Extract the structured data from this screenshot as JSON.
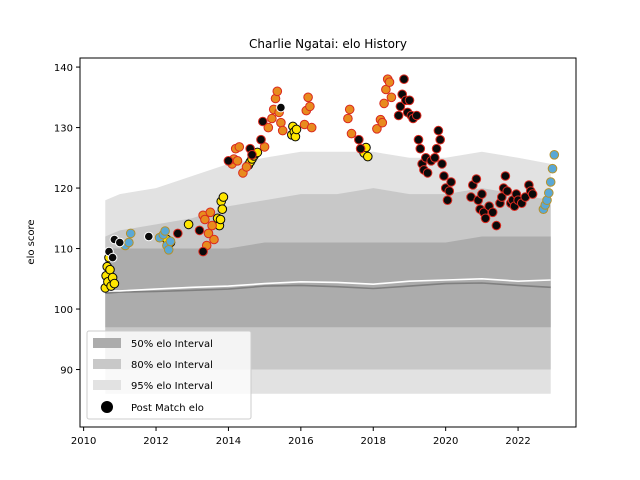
{
  "chart_data": {
    "type": "scatter",
    "title": "Charlie Ngatai: elo History",
    "xlabel": "",
    "ylabel": "elo score",
    "xlim": [
      2009.9,
      2023.6
    ],
    "ylim": [
      80.5,
      141.5
    ],
    "x_ticks": [
      2010,
      2012,
      2014,
      2016,
      2018,
      2020,
      2022
    ],
    "y_ticks": [
      90,
      100,
      110,
      120,
      130,
      140
    ],
    "grid": false,
    "legend_position": "lower-left",
    "legend": [
      {
        "label": "50% elo Interval",
        "kind": "band",
        "color": "#acacac"
      },
      {
        "label": "80% elo Interval",
        "kind": "band",
        "color": "#c8c8c8"
      },
      {
        "label": "95% elo Interval",
        "kind": "band",
        "color": "#e2e2e2"
      },
      {
        "label": "Post Match elo",
        "kind": "marker",
        "color": "#000000"
      }
    ],
    "bands": {
      "x": [
        2010.6,
        2011.0,
        2012.0,
        2013.0,
        2014.0,
        2015.0,
        2016.0,
        2017.0,
        2018.0,
        2019.0,
        2020.0,
        2021.0,
        2022.0,
        2022.9
      ],
      "p95_upper": [
        118,
        119,
        120,
        122,
        124,
        125,
        126,
        126,
        126,
        125,
        125,
        126,
        125,
        124
      ],
      "p95_lower": [
        86,
        86,
        86,
        86,
        86,
        86,
        86,
        86,
        86,
        86,
        86,
        86,
        86,
        86
      ],
      "p80_upper": [
        112,
        113,
        114,
        115,
        117,
        118,
        119,
        119,
        120,
        119,
        119,
        120,
        119,
        118
      ],
      "p80_lower": [
        90,
        90,
        90,
        90,
        90,
        90,
        90,
        90,
        90,
        90,
        90,
        90,
        90,
        90
      ],
      "p50_upper": [
        110,
        110,
        110,
        110,
        110,
        111,
        111,
        111,
        111,
        111,
        111,
        112,
        112,
        112
      ],
      "p50_lower": [
        97,
        97,
        97,
        97,
        97,
        97,
        97,
        97,
        97,
        97,
        97,
        97,
        97,
        97
      ]
    },
    "median_line": {
      "x": [
        2010.6,
        2011.0,
        2012.0,
        2013.0,
        2014.0,
        2015.0,
        2016.0,
        2017.0,
        2018.0,
        2019.0,
        2020.0,
        2021.0,
        2022.0,
        2022.9
      ],
      "y": [
        103.0,
        103.0,
        103.3,
        103.6,
        103.8,
        104.2,
        104.5,
        104.4,
        104.1,
        104.6,
        104.8,
        105.0,
        104.6,
        104.8
      ]
    },
    "mean_line": {
      "x": [
        2010.6,
        2011.0,
        2012.0,
        2013.0,
        2014.0,
        2015.0,
        2016.0,
        2017.0,
        2018.0,
        2019.0,
        2020.0,
        2021.0,
        2022.0,
        2022.9
      ],
      "y": [
        102.6,
        102.8,
        102.9,
        103.1,
        103.3,
        103.8,
        103.9,
        103.7,
        103.4,
        103.8,
        104.2,
        104.3,
        103.9,
        103.6
      ]
    },
    "series": [
      {
        "fill": "#ffe600",
        "edge": "#0a0a0a",
        "x": [
          2010.6,
          2010.62,
          2010.65,
          2010.67,
          2010.7,
          2010.73,
          2010.76,
          2010.8,
          2010.85,
          2012.3,
          2012.4,
          2012.9,
          2013.7,
          2013.75,
          2013.78,
          2013.8,
          2013.83,
          2013.86,
          2014.55,
          2014.6,
          2014.65,
          2014.7,
          2014.75,
          2014.8,
          2015.75,
          2015.78,
          2015.82,
          2015.85,
          2015.88,
          2017.7,
          2017.75,
          2017.8,
          2017.85
        ],
        "y": [
          103.5,
          105.5,
          107.0,
          104.5,
          108.5,
          106.5,
          103.8,
          105.2,
          104.2,
          111.5,
          111.0,
          114.0,
          115.0,
          113.8,
          114.8,
          117.8,
          116.5,
          118.5,
          123.8,
          124.3,
          124.8,
          125.3,
          125.7,
          125.9,
          128.8,
          130.2,
          129.3,
          128.5,
          129.7,
          126.3,
          125.8,
          126.7,
          125.2
        ]
      },
      {
        "fill": "#5aa8d6",
        "edge": "#b5912a",
        "x": [
          2011.15,
          2011.25,
          2011.3,
          2012.1,
          2012.2,
          2012.25,
          2012.3,
          2012.35,
          2012.4,
          2022.7,
          2022.75,
          2022.8,
          2022.85,
          2022.9,
          2022.95,
          2023.0
        ],
        "y": [
          110.5,
          111.0,
          112.5,
          111.8,
          112.3,
          112.9,
          110.5,
          109.8,
          111.2,
          116.5,
          117.2,
          118.0,
          119.2,
          121.0,
          123.2,
          125.5
        ]
      },
      {
        "fill": "#e88b1e",
        "edge": "#d92a20",
        "x": [
          2013.3,
          2013.35,
          2013.4,
          2013.45,
          2013.5,
          2013.55,
          2013.6,
          2014.1,
          2014.15,
          2014.2,
          2014.25,
          2014.3,
          2014.4,
          2014.5,
          2015.0,
          2015.1,
          2015.2,
          2015.25,
          2015.3,
          2015.35,
          2015.4,
          2015.45,
          2015.5,
          2016.1,
          2016.15,
          2016.2,
          2016.25,
          2016.3,
          2017.3,
          2017.35,
          2017.4,
          2018.1,
          2018.2,
          2018.25,
          2018.3,
          2018.35,
          2018.4,
          2018.45,
          2018.5
        ],
        "y": [
          115.5,
          114.8,
          110.5,
          112.5,
          116.0,
          113.8,
          111.5,
          124.0,
          124.8,
          126.5,
          124.5,
          126.8,
          122.5,
          123.5,
          126.8,
          130.0,
          131.5,
          133.0,
          134.8,
          136.0,
          132.5,
          130.8,
          129.5,
          130.5,
          132.8,
          135.0,
          133.5,
          130.0,
          131.5,
          133.0,
          129.0,
          129.8,
          131.3,
          130.8,
          134.0,
          136.3,
          138.0,
          137.5,
          135.0
        ]
      },
      {
        "fill": "#0a0a0a",
        "edge": "#d92a20",
        "x": [
          2012.6,
          2013.2,
          2013.3,
          2014.0,
          2014.6,
          2014.65,
          2014.9,
          2014.95,
          2017.6,
          2017.65,
          2018.7,
          2018.75,
          2018.8,
          2018.85,
          2018.9,
          2018.95,
          2019.0,
          2019.05,
          2019.1,
          2019.2,
          2019.25,
          2019.3,
          2019.35,
          2019.4,
          2019.45,
          2019.5,
          2019.6,
          2019.7,
          2019.75,
          2019.8,
          2019.85,
          2019.9,
          2019.95,
          2020.0,
          2020.05,
          2020.1,
          2020.15,
          2020.7,
          2020.75,
          2020.85,
          2020.9,
          2020.95,
          2021.0,
          2021.05,
          2021.1,
          2021.2,
          2021.3,
          2021.4,
          2021.5,
          2021.55,
          2021.6,
          2021.65,
          2021.7,
          2021.8,
          2021.85,
          2021.9,
          2021.95,
          2022.0,
          2022.1,
          2022.2,
          2022.3,
          2022.35,
          2022.4
        ],
        "y": [
          112.5,
          113.0,
          109.5,
          124.5,
          126.5,
          125.5,
          128.0,
          131.0,
          128.0,
          126.5,
          132.0,
          133.5,
          135.5,
          138.0,
          134.5,
          132.5,
          134.5,
          132.0,
          131.5,
          132.0,
          128.0,
          126.5,
          124.0,
          123.0,
          125.0,
          122.5,
          124.5,
          125.0,
          126.5,
          129.5,
          128.0,
          124.0,
          122.0,
          120.0,
          118.0,
          119.5,
          121.0,
          118.5,
          120.5,
          121.5,
          118.0,
          116.5,
          119.0,
          116.0,
          115.0,
          117.0,
          116.0,
          113.8,
          117.5,
          118.5,
          120.0,
          122.0,
          119.5,
          117.5,
          118.0,
          117.0,
          119.0,
          118.0,
          117.5,
          118.5,
          120.5,
          119.5,
          119.0
        ]
      },
      {
        "fill": "#0a0a0a",
        "edge": "#ffffff",
        "x": [
          2010.7,
          2010.8,
          2010.85,
          2011.0,
          2011.8,
          2015.45
        ],
        "y": [
          109.5,
          108.5,
          111.5,
          111.0,
          112.0,
          133.3
        ]
      }
    ]
  }
}
